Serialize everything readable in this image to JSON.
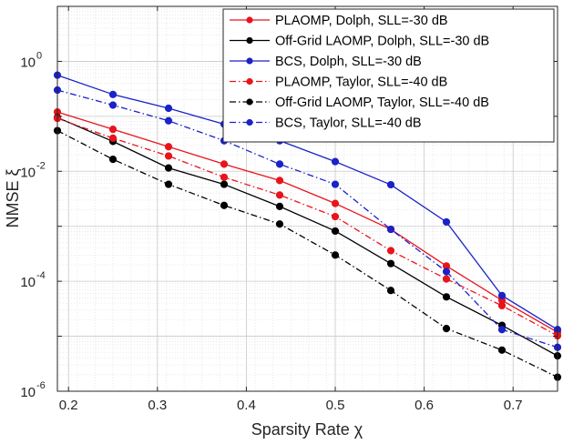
{
  "chart_data": {
    "type": "line",
    "title": "",
    "xlabel": "Sparsity Rate χ",
    "ylabel": "NMSE ξ",
    "yscale": "log",
    "xlim": [
      0.1875,
      0.75
    ],
    "ylim_exp": [
      -6,
      1
    ],
    "grid": true,
    "minor_grid": true,
    "legend_position": "top-right",
    "x_ticks": [
      "0.2",
      "0.3",
      "0.4",
      "0.5",
      "0.6",
      "0.7"
    ],
    "x_tick_values": [
      0.2,
      0.3,
      0.4,
      0.5,
      0.6,
      0.7
    ],
    "y_ticks": [
      {
        "exp": 0,
        "base": "10",
        "sup": "0"
      },
      {
        "exp": -2,
        "base": "10",
        "sup": "-2"
      },
      {
        "exp": -4,
        "base": "10",
        "sup": "-4"
      },
      {
        "exp": -6,
        "base": "10",
        "sup": "-6"
      }
    ],
    "x": [
      0.1875,
      0.25,
      0.3125,
      0.375,
      0.4375,
      0.5,
      0.5625,
      0.625,
      0.6875,
      0.75
    ],
    "series": [
      {
        "name": "PLAOMP, Dolph, SLL=-30 dB",
        "color": "#e8141c",
        "dash": "solid",
        "values": [
          0.12,
          0.058,
          0.028,
          0.0135,
          0.0068,
          0.0026,
          0.00088,
          0.00019,
          4.5e-05,
          1.18e-05
        ]
      },
      {
        "name": "Off-Grid LAOMP, Dolph, SLL=-30 dB",
        "color": "#000000",
        "dash": "solid",
        "values": [
          0.095,
          0.035,
          0.0115,
          0.0058,
          0.0023,
          0.00082,
          0.00021,
          5.2e-05,
          1.58e-05,
          4.4e-06
        ]
      },
      {
        "name": "BCS, Dolph, SLL=-30 dB",
        "color": "#1a22c8",
        "dash": "solid",
        "values": [
          0.56,
          0.25,
          0.14,
          0.072,
          0.036,
          0.015,
          0.0057,
          0.0012,
          5.5e-05,
          1.32e-05
        ]
      },
      {
        "name": "PLAOMP, Taylor, SLL=-40 dB",
        "color": "#e8141c",
        "dash": "dashdot",
        "values": [
          0.092,
          0.04,
          0.019,
          0.0078,
          0.0037,
          0.0015,
          0.00036,
          0.00011,
          3.6e-05,
          1.02e-05
        ]
      },
      {
        "name": "Off-Grid LAOMP, Taylor, SLL=-40 dB",
        "color": "#000000",
        "dash": "dashdot",
        "values": [
          0.055,
          0.0165,
          0.0058,
          0.0024,
          0.0011,
          0.0003,
          6.8e-05,
          1.38e-05,
          5.6e-06,
          1.8e-06
        ]
      },
      {
        "name": "BCS, Taylor, SLL=-40 dB",
        "color": "#1a22c8",
        "dash": "dashdot",
        "values": [
          0.3,
          0.16,
          0.083,
          0.036,
          0.0135,
          0.0058,
          0.00088,
          0.00015,
          1.32e-05,
          6.3e-06
        ]
      }
    ]
  }
}
